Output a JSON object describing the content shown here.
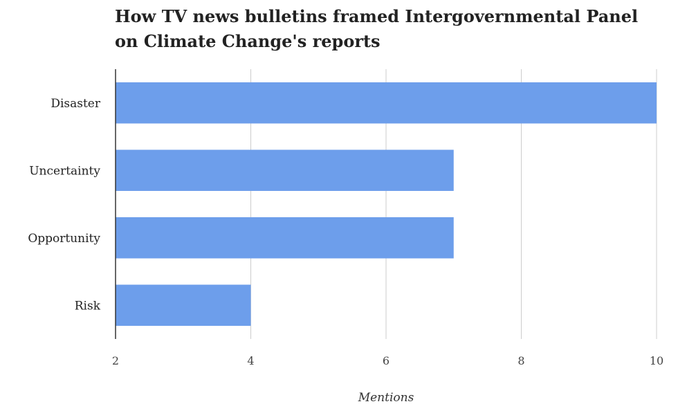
{
  "chart_data": {
    "type": "bar",
    "orientation": "horizontal",
    "title": "How TV news bulletins framed Intergovernmental Panel on Climate Change's reports",
    "xlabel": "Mentions",
    "ylabel": "",
    "categories": [
      "Disaster",
      "Uncertainty",
      "Opportunity",
      "Risk"
    ],
    "values": [
      10,
      7,
      7,
      4
    ],
    "xlim": [
      2,
      10
    ],
    "xticks": [
      2,
      4,
      6,
      8,
      10
    ],
    "grid": true,
    "legend": "none",
    "bar_color": "#6d9eeb"
  }
}
